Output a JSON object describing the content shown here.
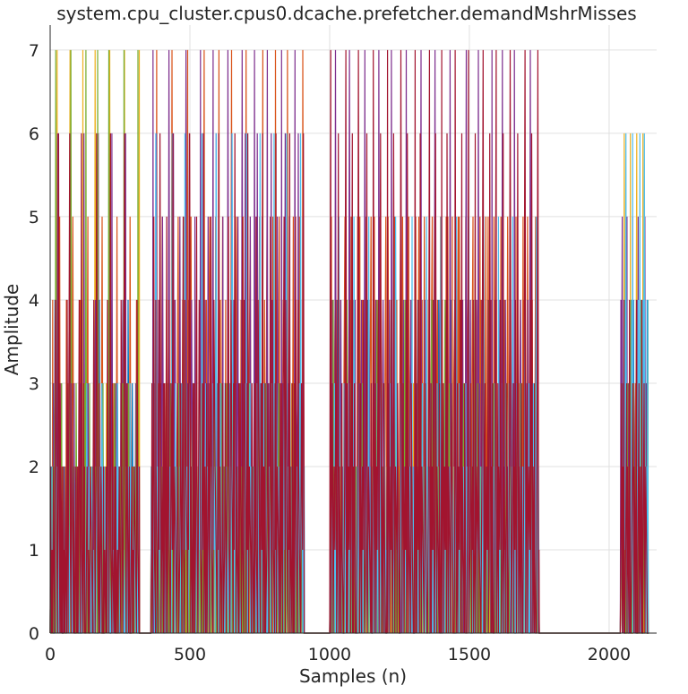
{
  "chart_data": {
    "type": "line",
    "title": "system.cpu_cluster.cpus0.dcache.prefetcher.demandMshrMisses",
    "xlabel": "Samples (n)",
    "ylabel": "Amplitude",
    "xlim": [
      0,
      2170
    ],
    "ylim": [
      0,
      7.3
    ],
    "xticks": [
      0,
      500,
      1000,
      1500,
      2000
    ],
    "yticks": [
      0,
      1,
      2,
      3,
      4,
      5,
      6,
      7
    ],
    "grid": true,
    "legend": "none",
    "series": [
      {
        "color": "#0072BD",
        "segments": [
          {
            "start": 0,
            "end": 320,
            "pattern": [
              0,
              1,
              0,
              2,
              0,
              1,
              0,
              0,
              4,
              1,
              0,
              2,
              1,
              0,
              3,
              0,
              1,
              2,
              0,
              1
            ]
          },
          {
            "start": 360,
            "end": 910,
            "pattern": [
              0,
              1,
              2,
              0,
              1,
              3,
              0,
              1,
              0,
              2,
              1,
              0,
              2,
              0,
              1,
              0,
              1,
              2,
              0,
              1
            ]
          },
          {
            "start": 1000,
            "end": 1750,
            "pattern": [
              0,
              1,
              0,
              2,
              1,
              0,
              3,
              0,
              1,
              2,
              0,
              1,
              0,
              4,
              0,
              1,
              2,
              0,
              1,
              0
            ]
          },
          {
            "start": 2040,
            "end": 2140,
            "pattern": [
              0,
              1,
              3,
              0,
              2,
              4,
              1,
              0,
              2,
              1,
              3,
              0
            ]
          }
        ],
        "seed": 11
      },
      {
        "color": "#D95319",
        "segments": [
          {
            "start": 0,
            "end": 320,
            "pattern": [
              0,
              1,
              0,
              2,
              0,
              4,
              1,
              0,
              2,
              1,
              0,
              3,
              0,
              1,
              0,
              2,
              5,
              1,
              0,
              2
            ]
          },
          {
            "start": 360,
            "end": 910,
            "pattern": [
              0,
              2,
              1,
              5,
              0,
              3,
              1,
              7,
              0,
              2,
              4,
              0,
              1,
              3,
              5,
              0,
              2,
              1,
              0,
              4
            ]
          },
          {
            "start": 1000,
            "end": 1750,
            "pattern": [
              0,
              2,
              5,
              1,
              0,
              3,
              4,
              0,
              2,
              1,
              5,
              0,
              3,
              4,
              0,
              2,
              1,
              0,
              3,
              5
            ]
          },
          {
            "start": 2040,
            "end": 2140,
            "pattern": [
              0,
              2,
              1,
              3,
              0,
              2,
              1,
              0
            ]
          }
        ],
        "seed": 23
      },
      {
        "color": "#EDB120",
        "segments": [
          {
            "start": 0,
            "end": 320,
            "pattern": [
              0,
              1,
              0,
              0,
              2,
              1,
              0,
              3,
              0,
              1,
              7,
              0,
              2,
              0,
              1,
              0,
              1,
              0,
              2,
              0
            ]
          },
          {
            "start": 360,
            "end": 910,
            "pattern": [
              0,
              1,
              0,
              2,
              0,
              1,
              0,
              3,
              0,
              1,
              2,
              0,
              1,
              0,
              1,
              0,
              2,
              1,
              0,
              1
            ]
          },
          {
            "start": 1000,
            "end": 1750,
            "pattern": [
              0,
              1,
              0,
              2,
              0,
              1,
              3,
              0,
              1,
              0,
              2,
              0,
              1,
              0,
              3,
              0,
              1,
              2,
              0,
              1
            ]
          },
          {
            "start": 2040,
            "end": 2140,
            "pattern": [
              0,
              1,
              0,
              2,
              1,
              6,
              0,
              1,
              0
            ]
          }
        ],
        "seed": 37
      },
      {
        "color": "#7E2F8E",
        "segments": [
          {
            "start": 0,
            "end": 320,
            "pattern": [
              0,
              1,
              0,
              2,
              1,
              0,
              3,
              1,
              4,
              0,
              2,
              1,
              6,
              0,
              2,
              1,
              0,
              3,
              1,
              0
            ]
          },
          {
            "start": 360,
            "end": 910,
            "pattern": [
              0,
              2,
              1,
              7,
              0,
              3,
              2,
              1,
              6,
              0,
              2,
              4,
              1,
              0,
              3,
              2,
              5,
              1,
              0,
              2
            ]
          },
          {
            "start": 1000,
            "end": 1750,
            "pattern": [
              0,
              1,
              2,
              0,
              3,
              1,
              4,
              0,
              2,
              1,
              7,
              0,
              3,
              1,
              0,
              2,
              4,
              1,
              0,
              2
            ]
          },
          {
            "start": 2040,
            "end": 2140,
            "pattern": [
              0,
              2,
              4,
              1,
              5,
              0,
              3,
              2,
              0
            ]
          }
        ],
        "seed": 53
      },
      {
        "color": "#77AC30",
        "segments": [
          {
            "start": 0,
            "end": 320,
            "pattern": [
              0,
              1,
              0,
              2,
              0,
              1,
              3,
              0,
              7,
              0,
              2,
              1,
              0,
              1,
              0,
              3,
              0,
              1,
              0,
              2
            ]
          },
          {
            "start": 360,
            "end": 910,
            "pattern": [
              0,
              1,
              0,
              2,
              1,
              0,
              1,
              3,
              0,
              1,
              2,
              0,
              1,
              0,
              2,
              0,
              1,
              3,
              0,
              1
            ]
          },
          {
            "start": 1000,
            "end": 1750,
            "pattern": [
              0,
              1,
              2,
              0,
              1,
              0,
              2,
              4,
              0,
              1,
              0,
              2,
              3,
              0,
              1,
              0,
              2,
              1,
              0,
              1
            ]
          },
          {
            "start": 2040,
            "end": 2140,
            "pattern": [
              0,
              1,
              3,
              0,
              2,
              1,
              4,
              0
            ]
          }
        ],
        "seed": 67
      },
      {
        "color": "#4DBEEE",
        "segments": [
          {
            "start": 0,
            "end": 320,
            "pattern": [
              0,
              1,
              2,
              0,
              1,
              0,
              2,
              1,
              0,
              3,
              1,
              0,
              2,
              1,
              0,
              1,
              2,
              0,
              1,
              0
            ]
          },
          {
            "start": 360,
            "end": 910,
            "pattern": [
              0,
              1,
              2,
              1,
              0,
              3,
              1,
              2,
              0,
              6,
              1,
              2,
              0,
              1,
              3,
              1,
              0,
              2,
              1,
              0
            ]
          },
          {
            "start": 1000,
            "end": 1750,
            "pattern": [
              0,
              1,
              0,
              2,
              1,
              0,
              3,
              1,
              0,
              2,
              1,
              0,
              5,
              1,
              0,
              2,
              1,
              0,
              3,
              1
            ]
          },
          {
            "start": 2040,
            "end": 2140,
            "pattern": [
              0,
              1,
              2,
              0,
              4,
              1,
              6,
              0,
              2
            ]
          }
        ],
        "seed": 79
      },
      {
        "color": "#A2142F",
        "segments": [
          {
            "start": 0,
            "end": 320,
            "pattern": [
              0,
              2,
              0,
              1,
              0,
              2,
              1,
              0,
              4,
              1,
              0,
              2,
              6,
              1,
              0,
              3,
              1,
              0,
              2,
              0
            ]
          },
          {
            "start": 360,
            "end": 910,
            "pattern": [
              0,
              1,
              3,
              0,
              2,
              5,
              1,
              0,
              4,
              2,
              1,
              0,
              3,
              1,
              6,
              0,
              2,
              1,
              0,
              3
            ]
          },
          {
            "start": 1000,
            "end": 1750,
            "pattern": [
              0,
              2,
              7,
              0,
              1,
              3,
              0,
              2,
              1,
              4,
              0,
              1,
              6,
              0,
              2,
              1,
              0,
              3,
              1,
              0
            ]
          },
          {
            "start": 2040,
            "end": 2140,
            "pattern": [
              0,
              1,
              3,
              0,
              2,
              1,
              0,
              4,
              0
            ]
          }
        ],
        "seed": 97
      }
    ]
  }
}
